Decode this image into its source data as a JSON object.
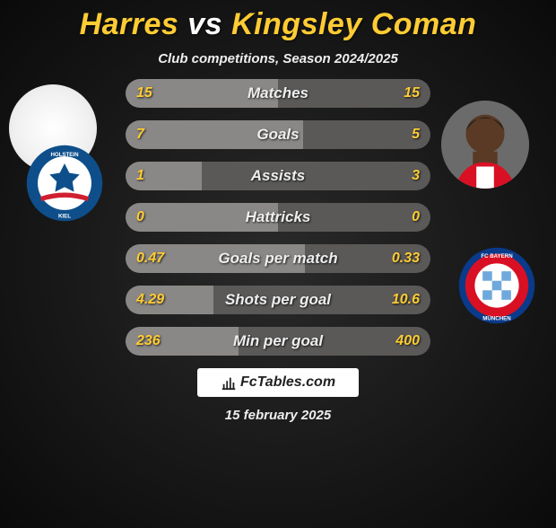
{
  "title_player1": "Harres",
  "title_vs": "vs",
  "title_player2": "Kingsley Coman",
  "title_color_player": "#ffcc33",
  "title_color_vs": "#ffffff",
  "subtitle": "Club competitions, Season 2024/2025",
  "bar_left_color": "#8a8886",
  "bar_right_color": "#5a5958",
  "stat_value_color": "#ffcc33",
  "rows": [
    {
      "label": "Matches",
      "left": "15",
      "right": "15",
      "left_pct": 50
    },
    {
      "label": "Goals",
      "left": "7",
      "right": "5",
      "left_pct": 58.3
    },
    {
      "label": "Assists",
      "left": "1",
      "right": "3",
      "left_pct": 25
    },
    {
      "label": "Hattricks",
      "left": "0",
      "right": "0",
      "left_pct": 50
    },
    {
      "label": "Goals per match",
      "left": "0.47",
      "right": "0.33",
      "left_pct": 58.8
    },
    {
      "label": "Shots per goal",
      "left": "4.29",
      "right": "10.6",
      "left_pct": 28.8
    },
    {
      "label": "Min per goal",
      "left": "236",
      "right": "400",
      "left_pct": 37.1
    }
  ],
  "footer_brand": "FcTables.com",
  "footer_date": "15 february 2025",
  "club_left": {
    "name": "Holstein Kiel",
    "ring_color": "#0e4f8b",
    "inner_color": "#ffffff",
    "accent_color": "#d02030"
  },
  "club_right": {
    "name": "Bayern München",
    "outer_color": "#0a3a8a",
    "ring_color": "#d91024",
    "inner_color": "#ffffff"
  }
}
